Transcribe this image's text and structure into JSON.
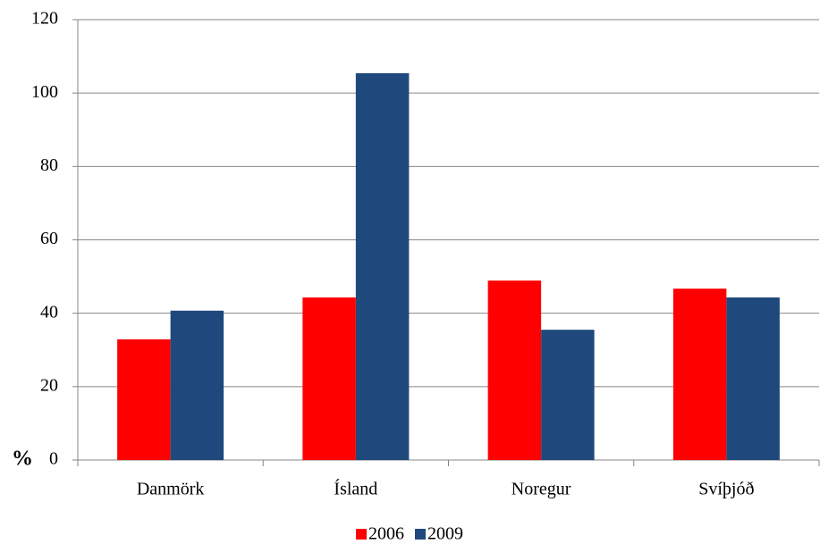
{
  "chart_data": {
    "type": "bar",
    "y_label": "%",
    "categories": [
      "Danmörk",
      "Ísland",
      "Noregur",
      "Svíþjóð"
    ],
    "series": [
      {
        "name": "2006",
        "color": "#ff0000",
        "values": [
          32.9,
          44.3,
          48.9,
          46.7
        ]
      },
      {
        "name": "2009",
        "color": "#1f497d",
        "values": [
          40.7,
          105.4,
          35.5,
          44.3
        ]
      }
    ],
    "ylim": [
      0,
      120
    ],
    "yticks": [
      0,
      20,
      40,
      60,
      80,
      100,
      120
    ],
    "grid": true
  }
}
